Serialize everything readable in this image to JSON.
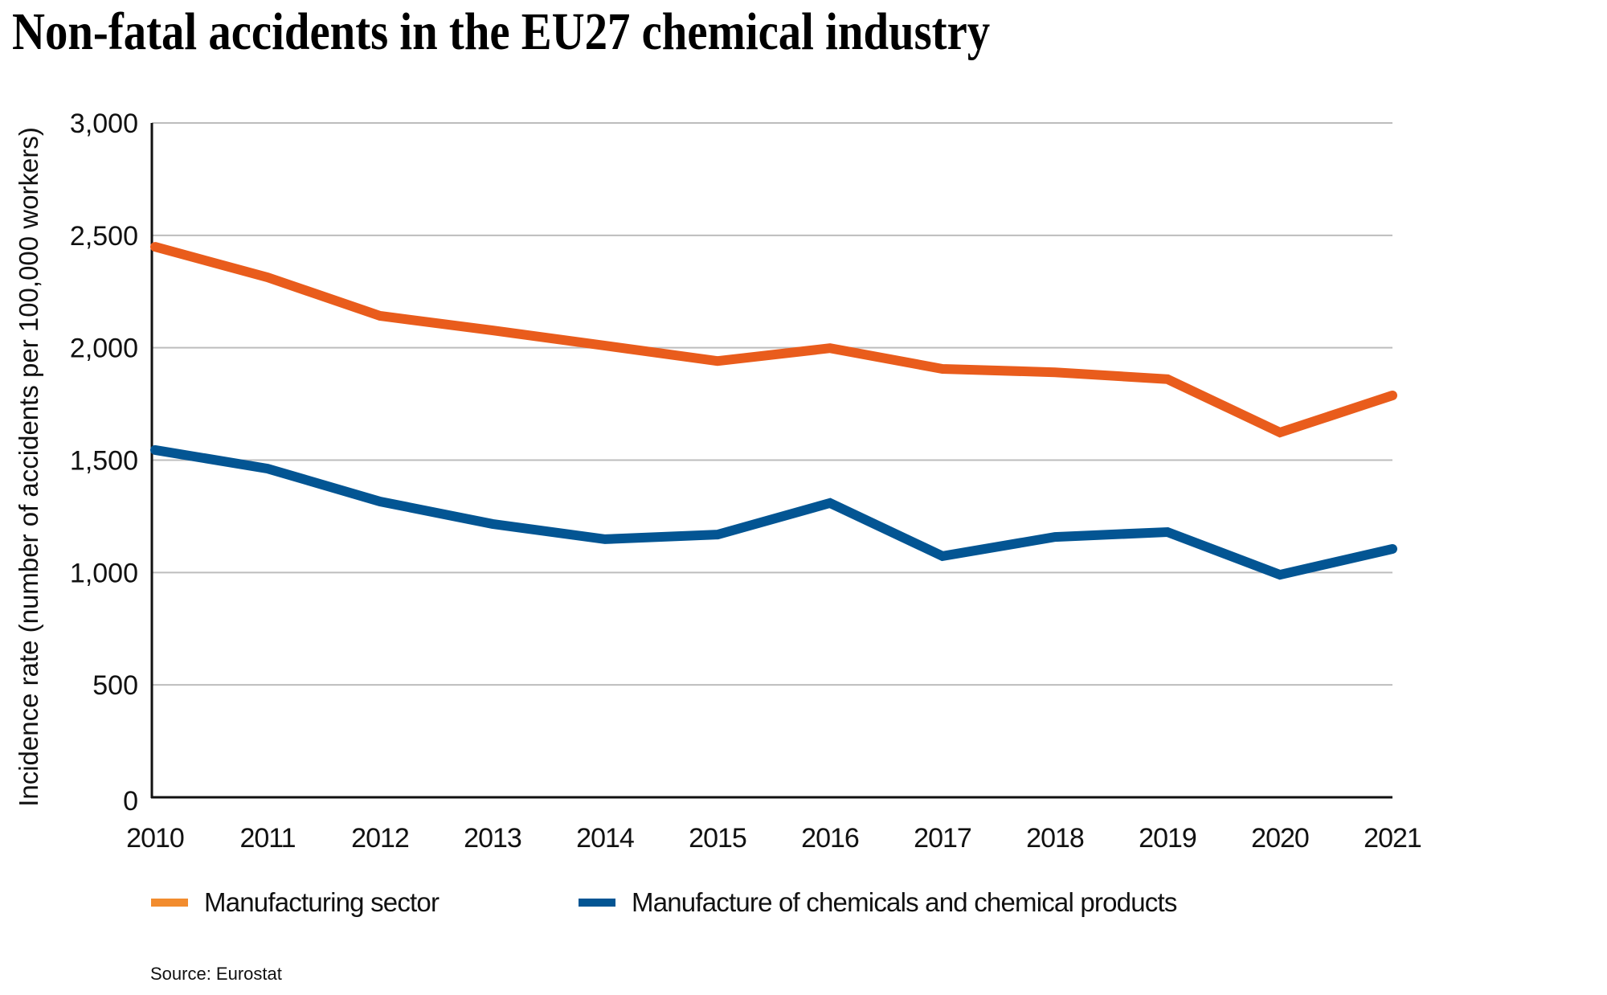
{
  "chart_data": {
    "type": "line",
    "title": "Non-fatal accidents in the EU27 chemical industry",
    "xlabel": "",
    "ylabel": "Incidence rate (number of accidents per 100,000 workers)",
    "x": [
      "2010",
      "2011",
      "2012",
      "2013",
      "2014",
      "2015",
      "2016",
      "2017",
      "2018",
      "2019",
      "2020",
      "2021"
    ],
    "ylim": [
      0,
      3000
    ],
    "yticks": [
      0,
      500,
      1000,
      1500,
      2000,
      2500,
      3000
    ],
    "ytick_labels": [
      "0",
      "500",
      "1,000",
      "1,500",
      "2,000",
      "2,500",
      "3,000"
    ],
    "grid": true,
    "legend_position": "bottom",
    "series": [
      {
        "name": "Manufacturing sector",
        "color": "#E95C1C",
        "legend_color": "#F28C2E",
        "values": [
          2449,
          2313,
          2142,
          2077,
          2009,
          1941,
          1998,
          1906,
          1891,
          1860,
          1623,
          1788
        ]
      },
      {
        "name": "Manufacture of chemicals and chemical products",
        "color": "#035593",
        "legend_color": "#035593",
        "values": [
          1545,
          1462,
          1316,
          1216,
          1148,
          1169,
          1309,
          1073,
          1158,
          1180,
          990,
          1105
        ]
      }
    ],
    "source": "Source: Eurostat"
  }
}
